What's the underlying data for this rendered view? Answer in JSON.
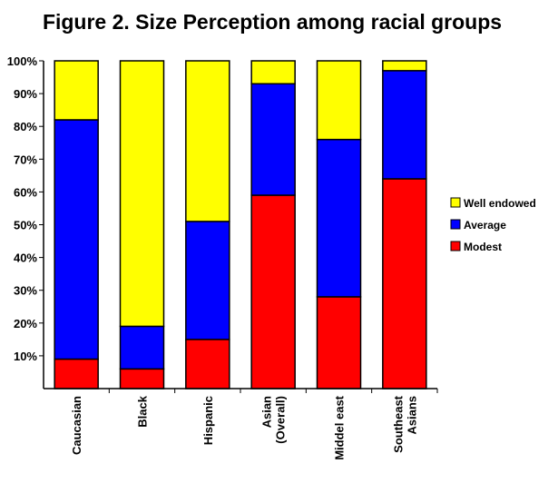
{
  "chart_data": {
    "type": "bar",
    "stacked": true,
    "title": "Figure 2. Size Perception among racial groups",
    "xlabel": "",
    "ylabel": "",
    "ylim": [
      0,
      100
    ],
    "yticks": [
      "10%",
      "20%",
      "30%",
      "40%",
      "50%",
      "60%",
      "70%",
      "80%",
      "90%",
      "100%"
    ],
    "categories": [
      [
        "Caucasian"
      ],
      [
        "Black"
      ],
      [
        "Hispanic"
      ],
      [
        "Asian",
        "(Overall)"
      ],
      [
        "Middel east"
      ],
      [
        "Southeast",
        "Asians"
      ]
    ],
    "series": [
      {
        "name": "Modest",
        "color": "#ff0000",
        "values": [
          9,
          6,
          15,
          59,
          28,
          64
        ]
      },
      {
        "name": "Average",
        "color": "#0000ff",
        "values": [
          73,
          13,
          36,
          34,
          48,
          33
        ]
      },
      {
        "name": "Well endowed",
        "color": "#ffff00",
        "values": [
          18,
          81,
          49,
          7,
          24,
          3
        ]
      }
    ],
    "legend": {
      "position": "right",
      "order": [
        "Well endowed",
        "Average",
        "Modest"
      ]
    },
    "grid": false
  }
}
